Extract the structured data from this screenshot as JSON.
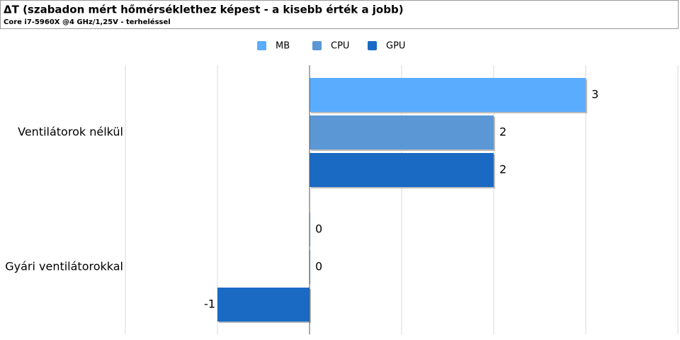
{
  "chart_data": {
    "type": "bar",
    "orientation": "horizontal",
    "title": "ΔT (szabadon mért hőmérséklethez képest - a kisebb érték a jobb)",
    "subtitle": "Core i7-5960X @4 GHz/1,25V - terheléssel",
    "categories": [
      "Ventilátorok nélkül",
      "Gyári ventilátorokkal"
    ],
    "series": [
      {
        "name": "MB",
        "color": "#5aacff",
        "values": [
          3,
          0
        ]
      },
      {
        "name": "CPU",
        "color": "#5b97d5",
        "values": [
          2,
          0
        ]
      },
      {
        "name": "GPU",
        "color": "#1a6ac4",
        "values": [
          2,
          -1
        ]
      }
    ],
    "xlim": [
      -2,
      4
    ],
    "grid": true,
    "legend": "top"
  }
}
